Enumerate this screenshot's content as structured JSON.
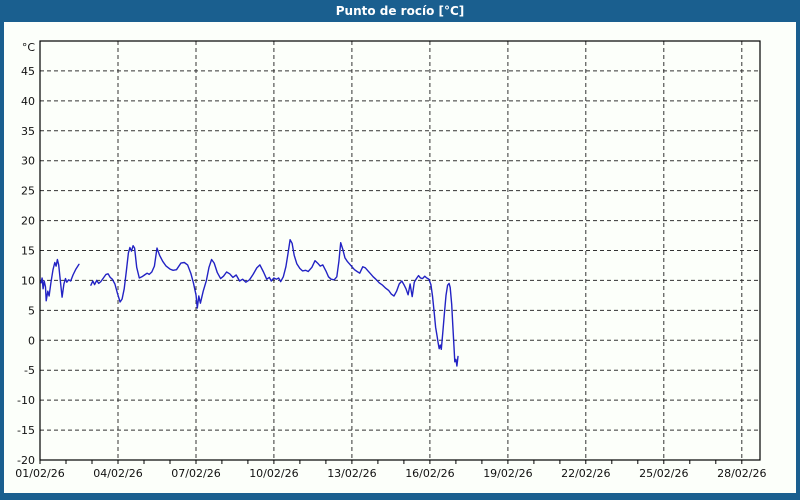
{
  "window": {
    "title": "Punto de rocío [°C]",
    "title_bar_color": "#1a5f8f",
    "background_color": "#fcfffa"
  },
  "chart_data": {
    "type": "line",
    "title": "Punto de rocío [°C]",
    "unit_label": "°C",
    "line_color": "#2323c4",
    "grid": "dashed",
    "legend": "none",
    "ylim": [
      -20,
      50
    ],
    "y_ticks": [
      45,
      40,
      35,
      30,
      25,
      20,
      15,
      10,
      5,
      0,
      -5,
      -10,
      -15,
      -20
    ],
    "xlim_days": [
      0,
      27.7
    ],
    "x_minor_tick_every_days": 1,
    "x_ticks": [
      {
        "day": 0,
        "label": "01/02/26"
      },
      {
        "day": 3,
        "label": "04/02/26"
      },
      {
        "day": 6,
        "label": "07/02/26"
      },
      {
        "day": 9,
        "label": "10/02/26"
      },
      {
        "day": 12,
        "label": "13/02/26"
      },
      {
        "day": 15,
        "label": "16/02/26"
      },
      {
        "day": 18,
        "label": "19/02/26"
      },
      {
        "day": 21,
        "label": "22/02/26"
      },
      {
        "day": 24,
        "label": "25/02/26"
      },
      {
        "day": 27,
        "label": "28/02/26"
      }
    ],
    "series_name": "Punto de rocío",
    "segments": [
      [
        [
          0.04,
          9.6
        ],
        [
          0.08,
          10.4
        ],
        [
          0.12,
          8.6
        ],
        [
          0.16,
          9.9
        ],
        [
          0.21,
          8.9
        ],
        [
          0.24,
          6.6
        ],
        [
          0.3,
          8.2
        ],
        [
          0.35,
          7.4
        ],
        [
          0.42,
          9.6
        ],
        [
          0.5,
          11.8
        ],
        [
          0.57,
          13.0
        ],
        [
          0.62,
          12.4
        ],
        [
          0.67,
          13.5
        ],
        [
          0.72,
          12.6
        ],
        [
          0.78,
          10.0
        ],
        [
          0.85,
          7.2
        ],
        [
          0.92,
          9.4
        ],
        [
          0.98,
          10.3
        ],
        [
          1.03,
          9.7
        ],
        [
          1.1,
          10.1
        ],
        [
          1.18,
          9.9
        ],
        [
          1.27,
          10.9
        ],
        [
          1.38,
          11.9
        ],
        [
          1.5,
          12.7
        ]
      ],
      [
        [
          1.96,
          9.2
        ],
        [
          2.03,
          9.9
        ],
        [
          2.1,
          9.3
        ],
        [
          2.18,
          10.0
        ],
        [
          2.26,
          9.5
        ],
        [
          2.34,
          9.8
        ],
        [
          2.44,
          10.4
        ],
        [
          2.54,
          11.0
        ],
        [
          2.62,
          11.1
        ],
        [
          2.7,
          10.5
        ],
        [
          2.78,
          10.2
        ],
        [
          2.88,
          9.4
        ],
        [
          2.98,
          7.8
        ],
        [
          3.08,
          6.4
        ],
        [
          3.16,
          6.9
        ],
        [
          3.24,
          8.6
        ],
        [
          3.32,
          11.5
        ],
        [
          3.4,
          14.6
        ],
        [
          3.46,
          15.5
        ],
        [
          3.52,
          14.9
        ],
        [
          3.58,
          15.8
        ],
        [
          3.64,
          15.4
        ],
        [
          3.72,
          12.2
        ],
        [
          3.82,
          10.4
        ],
        [
          3.92,
          10.6
        ],
        [
          4.02,
          10.9
        ],
        [
          4.12,
          11.2
        ],
        [
          4.2,
          11.0
        ],
        [
          4.3,
          11.4
        ],
        [
          4.4,
          12.4
        ],
        [
          4.5,
          15.4
        ],
        [
          4.6,
          14.2
        ],
        [
          4.72,
          13.2
        ],
        [
          4.85,
          12.4
        ],
        [
          5.0,
          11.9
        ],
        [
          5.12,
          11.7
        ],
        [
          5.25,
          11.8
        ],
        [
          5.42,
          12.9
        ],
        [
          5.55,
          13.0
        ],
        [
          5.68,
          12.6
        ],
        [
          5.8,
          11.2
        ],
        [
          5.9,
          9.6
        ],
        [
          6.0,
          7.6
        ],
        [
          6.05,
          5.4
        ],
        [
          6.11,
          7.4
        ],
        [
          6.17,
          6.2
        ],
        [
          6.28,
          8.2
        ],
        [
          6.4,
          10.0
        ],
        [
          6.5,
          12.2
        ],
        [
          6.6,
          13.5
        ],
        [
          6.7,
          12.9
        ],
        [
          6.82,
          11.3
        ],
        [
          6.95,
          10.3
        ],
        [
          7.06,
          10.7
        ],
        [
          7.18,
          11.4
        ],
        [
          7.3,
          11.1
        ],
        [
          7.42,
          10.5
        ],
        [
          7.55,
          10.9
        ],
        [
          7.68,
          9.9
        ],
        [
          7.8,
          10.2
        ],
        [
          7.92,
          9.7
        ],
        [
          8.06,
          10.1
        ],
        [
          8.2,
          11.0
        ],
        [
          8.34,
          12.1
        ],
        [
          8.46,
          12.6
        ],
        [
          8.6,
          11.4
        ],
        [
          8.72,
          10.2
        ],
        [
          8.82,
          10.5
        ],
        [
          8.9,
          9.9
        ],
        [
          9.0,
          10.4
        ],
        [
          9.1,
          10.2
        ],
        [
          9.18,
          10.4
        ],
        [
          9.26,
          9.8
        ],
        [
          9.36,
          10.6
        ],
        [
          9.46,
          12.3
        ],
        [
          9.54,
          14.5
        ],
        [
          9.62,
          16.8
        ],
        [
          9.7,
          16.2
        ],
        [
          9.78,
          14.2
        ],
        [
          9.88,
          12.8
        ],
        [
          10.0,
          12.0
        ],
        [
          10.1,
          11.6
        ],
        [
          10.22,
          11.7
        ],
        [
          10.32,
          11.5
        ],
        [
          10.46,
          12.2
        ],
        [
          10.58,
          13.3
        ],
        [
          10.68,
          12.9
        ],
        [
          10.78,
          12.4
        ],
        [
          10.88,
          12.6
        ],
        [
          11.0,
          11.6
        ],
        [
          11.1,
          10.6
        ],
        [
          11.2,
          10.2
        ],
        [
          11.32,
          10.1
        ],
        [
          11.42,
          10.6
        ],
        [
          11.5,
          13.2
        ],
        [
          11.57,
          16.3
        ],
        [
          11.65,
          15.2
        ],
        [
          11.73,
          13.8
        ],
        [
          11.82,
          13.2
        ],
        [
          11.9,
          12.8
        ],
        [
          12.0,
          12.3
        ],
        [
          12.1,
          11.8
        ],
        [
          12.2,
          11.5
        ],
        [
          12.3,
          11.2
        ],
        [
          12.42,
          12.3
        ],
        [
          12.52,
          12.1
        ],
        [
          12.62,
          11.6
        ],
        [
          12.72,
          11.1
        ],
        [
          12.82,
          10.6
        ],
        [
          12.92,
          10.2
        ],
        [
          13.05,
          9.6
        ],
        [
          13.18,
          9.2
        ],
        [
          13.3,
          8.7
        ],
        [
          13.42,
          8.3
        ],
        [
          13.52,
          7.7
        ],
        [
          13.62,
          7.4
        ],
        [
          13.72,
          8.2
        ],
        [
          13.82,
          9.4
        ],
        [
          13.92,
          9.9
        ],
        [
          14.0,
          9.3
        ],
        [
          14.08,
          8.6
        ],
        [
          14.16,
          7.6
        ],
        [
          14.24,
          9.4
        ],
        [
          14.32,
          7.3
        ],
        [
          14.4,
          9.7
        ],
        [
          14.48,
          10.3
        ],
        [
          14.56,
          10.8
        ],
        [
          14.64,
          10.4
        ],
        [
          14.72,
          10.3
        ],
        [
          14.8,
          10.7
        ],
        [
          14.88,
          10.4
        ],
        [
          14.96,
          10.2
        ],
        [
          15.04,
          9.3
        ],
        [
          15.1,
          7.4
        ],
        [
          15.16,
          4.8
        ],
        [
          15.22,
          2.2
        ],
        [
          15.28,
          0.6
        ],
        [
          15.32,
          -0.5
        ],
        [
          15.36,
          -1.4
        ],
        [
          15.4,
          -0.8
        ],
        [
          15.44,
          -1.5
        ],
        [
          15.5,
          1.5
        ],
        [
          15.56,
          4.5
        ],
        [
          15.62,
          7.5
        ],
        [
          15.68,
          9.2
        ],
        [
          15.74,
          9.5
        ],
        [
          15.78,
          8.8
        ],
        [
          15.84,
          6.0
        ],
        [
          15.88,
          2.5
        ],
        [
          15.92,
          -0.5
        ],
        [
          15.96,
          -3.6
        ],
        [
          16.0,
          -3.2
        ],
        [
          16.04,
          -4.3
        ],
        [
          16.08,
          -2.7
        ]
      ]
    ]
  }
}
